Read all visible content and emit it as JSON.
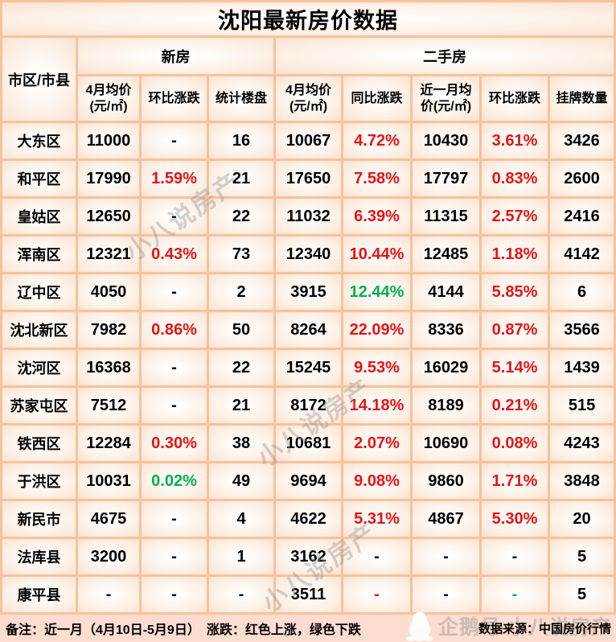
{
  "title": "沈阳最新房价数据",
  "colors": {
    "red": "#e81313",
    "green": "#00b050",
    "border": "#f6c29c",
    "footer_bg": "#fcddcf"
  },
  "chart_data": {
    "type": "table",
    "title": "沈阳最新房价数据",
    "corner_header": "市区/市县",
    "groups": [
      {
        "label": "新房",
        "span": 3
      },
      {
        "label": "二手房",
        "span": 5
      }
    ],
    "columns": [
      "4月均价(元/㎡)",
      "环比涨跌",
      "统计楼盘",
      "4月均价(元/㎡)",
      "同比涨跌",
      "近一月均价(元/㎡)",
      "环比涨跌",
      "挂牌数量"
    ],
    "rows": [
      {
        "district": "大东区",
        "cells": [
          [
            "11000",
            "black"
          ],
          [
            "-",
            "black"
          ],
          [
            "16",
            "black"
          ],
          [
            "10067",
            "black"
          ],
          [
            "4.72%",
            "red"
          ],
          [
            "10430",
            "black"
          ],
          [
            "3.61%",
            "red"
          ],
          [
            "3426",
            "black"
          ]
        ]
      },
      {
        "district": "和平区",
        "cells": [
          [
            "17990",
            "black"
          ],
          [
            "1.59%",
            "red"
          ],
          [
            "21",
            "black"
          ],
          [
            "17650",
            "black"
          ],
          [
            "7.58%",
            "red"
          ],
          [
            "17797",
            "black"
          ],
          [
            "0.83%",
            "red"
          ],
          [
            "2600",
            "black"
          ]
        ]
      },
      {
        "district": "皇姑区",
        "cells": [
          [
            "12650",
            "black"
          ],
          [
            "-",
            "black"
          ],
          [
            "22",
            "black"
          ],
          [
            "11032",
            "black"
          ],
          [
            "6.39%",
            "red"
          ],
          [
            "11315",
            "black"
          ],
          [
            "2.57%",
            "red"
          ],
          [
            "2416",
            "black"
          ]
        ]
      },
      {
        "district": "浑南区",
        "cells": [
          [
            "12321",
            "black"
          ],
          [
            "0.43%",
            "red"
          ],
          [
            "73",
            "black"
          ],
          [
            "12340",
            "black"
          ],
          [
            "10.44%",
            "red"
          ],
          [
            "12485",
            "black"
          ],
          [
            "1.18%",
            "red"
          ],
          [
            "4142",
            "black"
          ]
        ]
      },
      {
        "district": "辽中区",
        "cells": [
          [
            "4050",
            "black"
          ],
          [
            "-",
            "black"
          ],
          [
            "2",
            "black"
          ],
          [
            "3915",
            "black"
          ],
          [
            "12.44%",
            "green"
          ],
          [
            "4144",
            "black"
          ],
          [
            "5.85%",
            "red"
          ],
          [
            "6",
            "black"
          ]
        ]
      },
      {
        "district": "沈北新区",
        "cells": [
          [
            "7982",
            "black"
          ],
          [
            "0.86%",
            "red"
          ],
          [
            "50",
            "black"
          ],
          [
            "8264",
            "black"
          ],
          [
            "22.09%",
            "red"
          ],
          [
            "8336",
            "black"
          ],
          [
            "0.87%",
            "red"
          ],
          [
            "3566",
            "black"
          ]
        ]
      },
      {
        "district": "沈河区",
        "cells": [
          [
            "16368",
            "black"
          ],
          [
            "-",
            "black"
          ],
          [
            "22",
            "black"
          ],
          [
            "15245",
            "black"
          ],
          [
            "9.53%",
            "red"
          ],
          [
            "16029",
            "black"
          ],
          [
            "5.14%",
            "red"
          ],
          [
            "1439",
            "black"
          ]
        ]
      },
      {
        "district": "苏家屯区",
        "cells": [
          [
            "7512",
            "black"
          ],
          [
            "-",
            "black"
          ],
          [
            "21",
            "black"
          ],
          [
            "8172",
            "black"
          ],
          [
            "14.18%",
            "red"
          ],
          [
            "8189",
            "black"
          ],
          [
            "0.21%",
            "red"
          ],
          [
            "515",
            "black"
          ]
        ]
      },
      {
        "district": "铁西区",
        "cells": [
          [
            "12284",
            "black"
          ],
          [
            "0.30%",
            "red"
          ],
          [
            "38",
            "black"
          ],
          [
            "10681",
            "black"
          ],
          [
            "2.07%",
            "red"
          ],
          [
            "10690",
            "black"
          ],
          [
            "0.08%",
            "red"
          ],
          [
            "4243",
            "black"
          ]
        ]
      },
      {
        "district": "于洪区",
        "cells": [
          [
            "10031",
            "black"
          ],
          [
            "0.02%",
            "green"
          ],
          [
            "49",
            "black"
          ],
          [
            "9694",
            "black"
          ],
          [
            "9.08%",
            "red"
          ],
          [
            "9860",
            "black"
          ],
          [
            "1.71%",
            "red"
          ],
          [
            "3848",
            "black"
          ]
        ]
      },
      {
        "district": "新民市",
        "cells": [
          [
            "4675",
            "black"
          ],
          [
            "-",
            "black"
          ],
          [
            "4",
            "black"
          ],
          [
            "4622",
            "black"
          ],
          [
            "5.31%",
            "red"
          ],
          [
            "4867",
            "black"
          ],
          [
            "5.30%",
            "red"
          ],
          [
            "20",
            "black"
          ]
        ]
      },
      {
        "district": "法库县",
        "cells": [
          [
            "3200",
            "black"
          ],
          [
            "-",
            "black"
          ],
          [
            "1",
            "black"
          ],
          [
            "3162",
            "black"
          ],
          [
            "-",
            "black"
          ],
          [
            "-",
            "black"
          ],
          [
            "-",
            "black"
          ],
          [
            "5",
            "black"
          ]
        ]
      },
      {
        "district": "康平县",
        "cells": [
          [
            "-",
            "black"
          ],
          [
            "-",
            "black"
          ],
          [
            "-",
            "black"
          ],
          [
            "3511",
            "black"
          ],
          [
            "-",
            "red"
          ],
          [
            "-",
            "black"
          ],
          [
            "-",
            "green"
          ],
          [
            "5",
            "black"
          ]
        ]
      }
    ],
    "legend": "红色上涨，绿色下跌"
  },
  "footer": {
    "note": "备注：近一月（4月10日-5月9日）　涨跌：红色上涨，绿色下跌",
    "source": "数据来源：中国房价行情",
    "watermark": "企鹅号 小八说房产"
  },
  "watermark": {
    "text": "小八说房产"
  }
}
